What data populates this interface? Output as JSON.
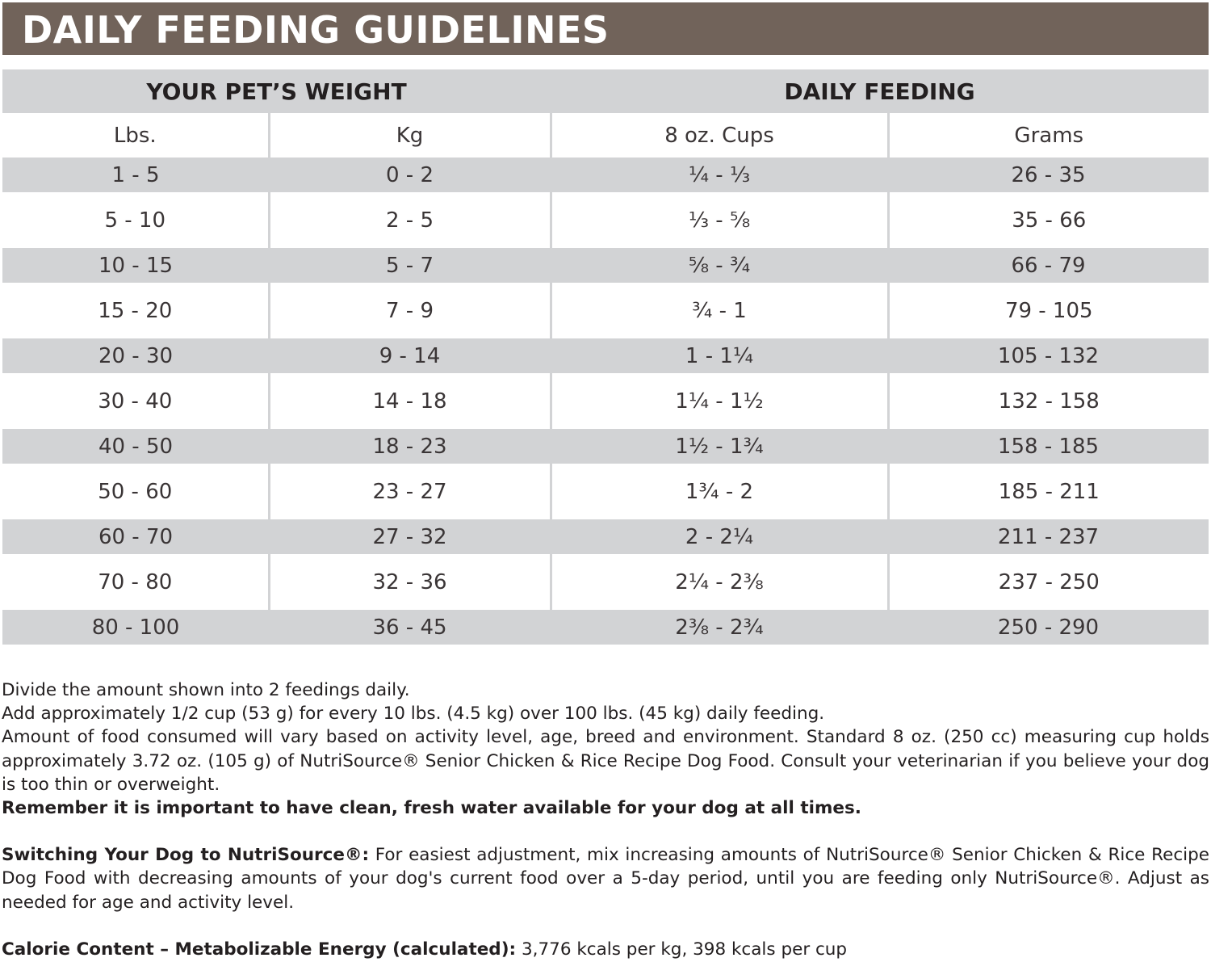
{
  "title": "DAILY FEEDING GUIDELINES",
  "table": {
    "groups": [
      "YOUR PET’S WEIGHT",
      "DAILY FEEDING"
    ],
    "columns": [
      "Lbs.",
      "Kg",
      "8 oz. Cups",
      "Grams"
    ],
    "rows": [
      [
        "1 - 5",
        "0 - 2",
        "¼ - ⅓",
        "26 - 35"
      ],
      [
        "5 - 10",
        "2 - 5",
        "⅓ - ⅝",
        "35 - 66"
      ],
      [
        "10 - 15",
        "5 - 7",
        "⅝ - ¾",
        "66 - 79"
      ],
      [
        "15 - 20",
        "7 - 9",
        "¾ - 1",
        "79 - 105"
      ],
      [
        "20 - 30",
        "9 - 14",
        "1 - 1¼",
        "105 - 132"
      ],
      [
        "30 - 40",
        "14 - 18",
        "1¼ - 1½",
        "132 - 158"
      ],
      [
        "40 - 50",
        "18 - 23",
        "1½ - 1¾",
        "158 - 185"
      ],
      [
        "50 - 60",
        "23 - 27",
        "1¾ - 2",
        "185 - 211"
      ],
      [
        "60 - 70",
        "27 - 32",
        "2 - 2¼",
        "211 - 237"
      ],
      [
        "70 - 80",
        "32 - 36",
        "2¼ - 2⅜",
        "237 - 250"
      ],
      [
        "80 - 100",
        "36 - 45",
        "2⅜ - 2¾",
        "250 - 290"
      ]
    ]
  },
  "notes": {
    "line1": "Divide the amount shown into 2 feedings daily.",
    "line2": "Add approximately 1/2 cup (53 g) for every 10 lbs. (4.5 kg) over 100 lbs. (45 kg) daily feeding.",
    "line3": "Amount of food consumed will vary based on activity level, age, breed and environment. Standard 8 oz. (250 cc) measuring cup holds approximately 3.72 oz. (105 g) of NutriSource® Senior Chicken & Rice Recipe Dog Food. Consult your veterinarian if you believe your dog is too thin or overweight.",
    "water": "Remember it is important to have clean, fresh water available for your dog at all times.",
    "switch_label": "Switching Your Dog to NutriSource®:",
    "switch_text": " For easiest adjustment, mix increasing amounts of NutriSource® Senior Chicken & Rice Recipe Dog Food with decreasing amounts of your dog's current food over a 5-day period, until you are feeding only NutriSource®. Adjust as needed for age and activity level.",
    "calorie_label": "Calorie Content – Metabolizable Energy (calculated):",
    "calorie_text": " 3,776 kcals per kg, 398 kcals per cup"
  },
  "colors": {
    "banner": "#71635a",
    "stripe": "#d2d3d5"
  }
}
